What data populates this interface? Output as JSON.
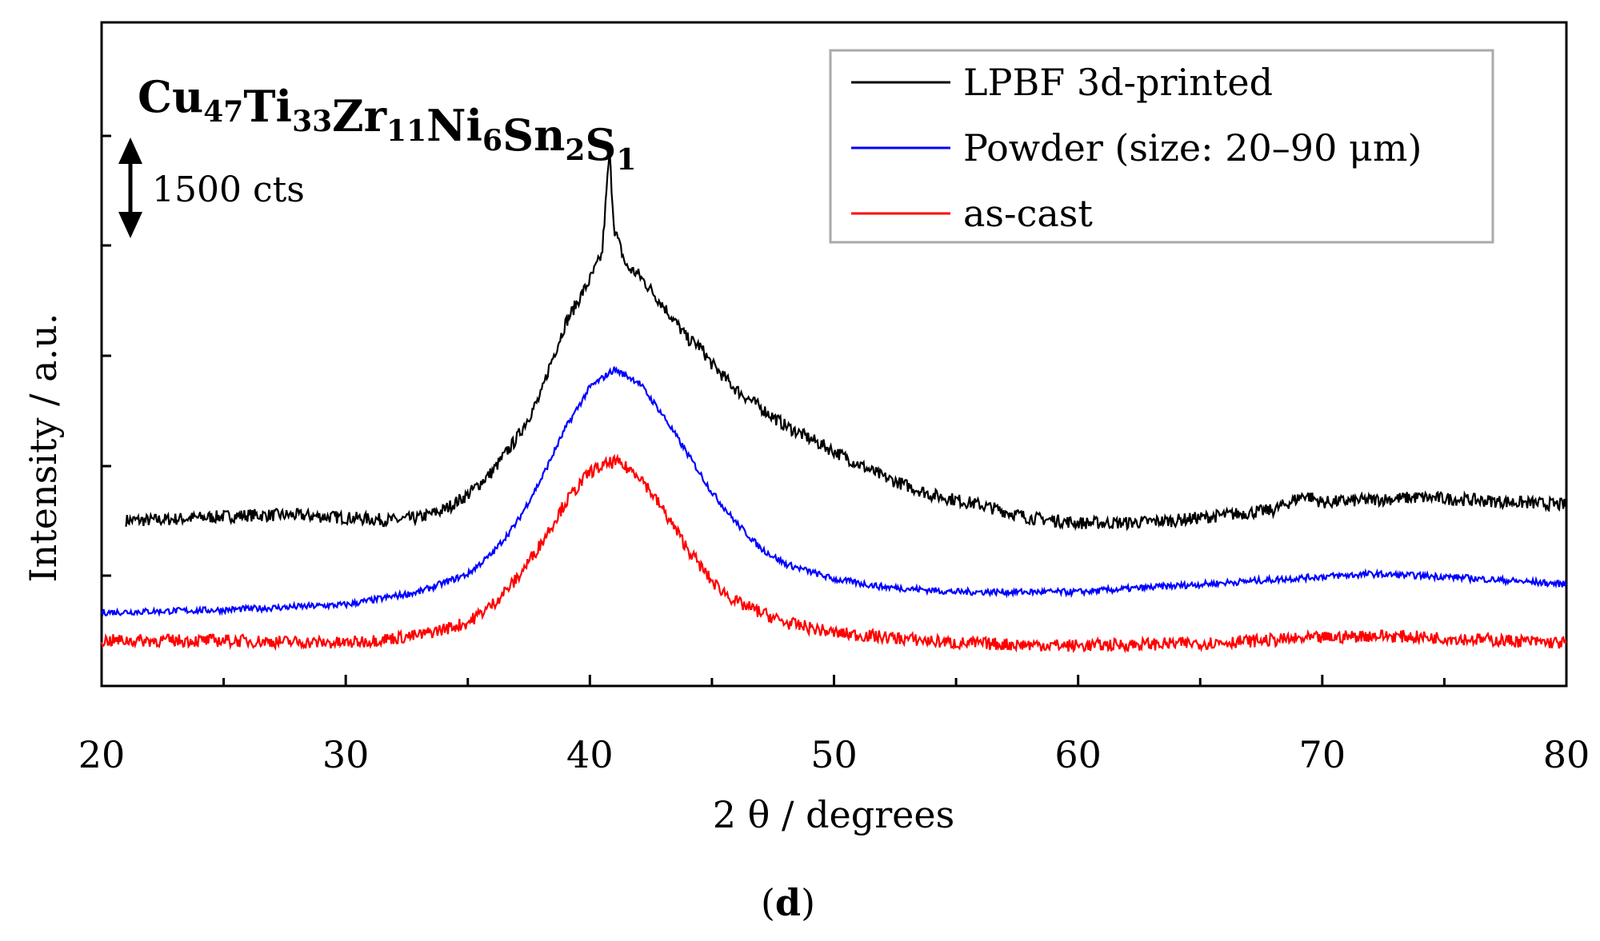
{
  "chart_data": {
    "type": "line",
    "compound": [
      {
        "el": "Cu",
        "n": "47"
      },
      {
        "el": "Ti",
        "n": "33"
      },
      {
        "el": "Zr",
        "n": "11"
      },
      {
        "el": "Ni",
        "n": "6"
      },
      {
        "el": "Sn",
        "n": "2"
      },
      {
        "el": "S",
        "n": "1"
      }
    ],
    "xlabel": "2 θ / degrees",
    "ylabel": "Intensity / a.u.",
    "xlim": [
      20,
      80
    ],
    "x_ticks": [
      "20",
      "30",
      "40",
      "50",
      "60",
      "70",
      "80"
    ],
    "y_tick_labels": "none",
    "scale_bar": {
      "label": "1500 cts",
      "counts": 1500
    },
    "panel_label": {
      "open": "(",
      "letter": "d",
      "close": ")"
    },
    "legend": {
      "placement": "top-right"
    },
    "series": [
      {
        "name": "LPBF 3d-printed",
        "color": "#000000",
        "x_range": [
          21,
          80
        ],
        "points": [
          [
            21,
            0.56
          ],
          [
            22,
            0.56
          ],
          [
            24,
            0.57
          ],
          [
            26,
            0.58
          ],
          [
            28,
            0.58
          ],
          [
            30,
            0.57
          ],
          [
            32,
            0.56
          ],
          [
            33,
            0.57
          ],
          [
            34,
            0.6
          ],
          [
            35,
            0.66
          ],
          [
            36,
            0.75
          ],
          [
            37,
            0.88
          ],
          [
            38,
            1.05
          ],
          [
            38.3,
            1.15
          ],
          [
            38.5,
            1.2
          ],
          [
            39,
            1.33
          ],
          [
            40,
            1.5
          ],
          [
            40.5,
            1.6
          ],
          [
            40.8,
            2.0
          ],
          [
            41.0,
            1.7
          ],
          [
            41.5,
            1.55
          ],
          [
            42,
            1.52
          ],
          [
            43,
            1.4
          ],
          [
            44,
            1.27
          ],
          [
            44.5,
            1.24
          ],
          [
            45,
            1.17
          ],
          [
            46,
            1.07
          ],
          [
            47,
            1.0
          ],
          [
            48,
            0.93
          ],
          [
            50,
            0.83
          ],
          [
            52,
            0.73
          ],
          [
            54,
            0.66
          ],
          [
            56,
            0.62
          ],
          [
            58,
            0.57
          ],
          [
            60,
            0.55
          ],
          [
            62,
            0.55
          ],
          [
            64,
            0.56
          ],
          [
            66,
            0.58
          ],
          [
            68,
            0.6
          ],
          [
            69.3,
            0.66
          ],
          [
            70,
            0.63
          ],
          [
            72,
            0.64
          ],
          [
            74,
            0.65
          ],
          [
            76,
            0.64
          ],
          [
            78,
            0.63
          ],
          [
            80,
            0.62
          ]
        ]
      },
      {
        "name": "Powder (size: 20–90 μm)",
        "color": "#0000ff",
        "x_range": [
          20,
          80
        ],
        "points": [
          [
            20,
            0.2
          ],
          [
            25,
            0.21
          ],
          [
            30,
            0.23
          ],
          [
            33,
            0.28
          ],
          [
            35,
            0.35
          ],
          [
            36,
            0.43
          ],
          [
            37,
            0.55
          ],
          [
            38,
            0.72
          ],
          [
            39,
            0.92
          ],
          [
            40,
            1.08
          ],
          [
            41,
            1.15
          ],
          [
            42,
            1.1
          ],
          [
            43,
            0.97
          ],
          [
            44,
            0.82
          ],
          [
            45,
            0.67
          ],
          [
            46,
            0.55
          ],
          [
            47,
            0.45
          ],
          [
            48,
            0.39
          ],
          [
            50,
            0.33
          ],
          [
            52,
            0.3
          ],
          [
            55,
            0.28
          ],
          [
            60,
            0.28
          ],
          [
            65,
            0.31
          ],
          [
            70,
            0.34
          ],
          [
            72,
            0.35
          ],
          [
            75,
            0.34
          ],
          [
            80,
            0.31
          ]
        ]
      },
      {
        "name": "as-cast",
        "color": "#ff0000",
        "x_range": [
          20,
          80
        ],
        "points": [
          [
            20,
            0.09
          ],
          [
            25,
            0.09
          ],
          [
            30,
            0.08
          ],
          [
            33,
            0.11
          ],
          [
            35,
            0.16
          ],
          [
            36,
            0.23
          ],
          [
            37,
            0.33
          ],
          [
            38,
            0.47
          ],
          [
            39,
            0.63
          ],
          [
            40,
            0.75
          ],
          [
            41,
            0.79
          ],
          [
            42,
            0.74
          ],
          [
            43,
            0.6
          ],
          [
            44,
            0.45
          ],
          [
            45,
            0.32
          ],
          [
            46,
            0.24
          ],
          [
            48,
            0.16
          ],
          [
            50,
            0.12
          ],
          [
            55,
            0.08
          ],
          [
            60,
            0.07
          ],
          [
            65,
            0.08
          ],
          [
            70,
            0.1
          ],
          [
            72,
            0.11
          ],
          [
            75,
            0.1
          ],
          [
            80,
            0.08
          ]
        ]
      }
    ]
  }
}
